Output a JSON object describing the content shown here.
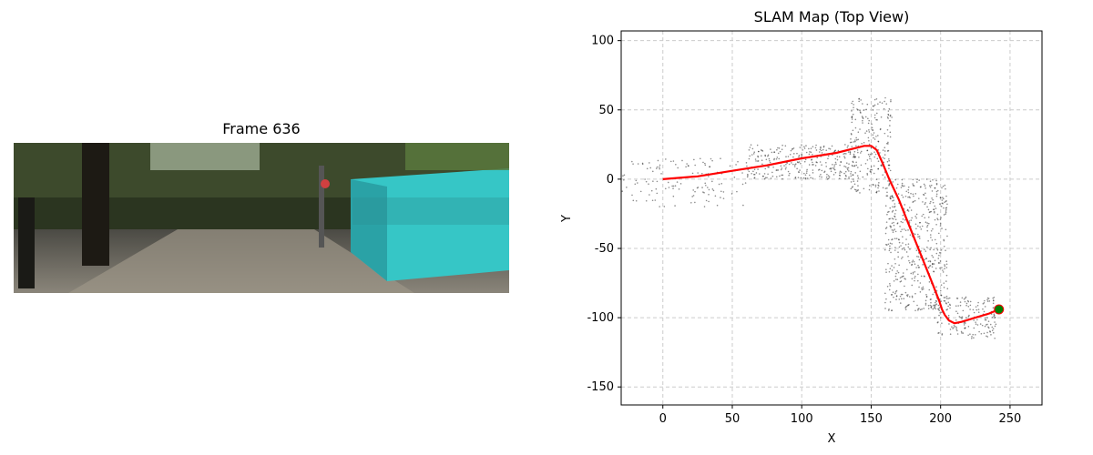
{
  "left_panel": {
    "frame_title": "Frame 636",
    "image_description_colors": {
      "sky": "#e9f3ea",
      "foliage": "#2f3a22",
      "container": "#38c8c8",
      "road": "#6e6a62"
    }
  },
  "chart_data": {
    "type": "scatter",
    "title": "SLAM Map (Top View)",
    "xlabel": "X",
    "ylabel": "Y",
    "xlim": [
      -30,
      273
    ],
    "ylim": [
      -163,
      107
    ],
    "xticks": [
      0,
      50,
      100,
      150,
      200,
      250
    ],
    "yticks": [
      -150,
      -100,
      -50,
      0,
      50,
      100
    ],
    "grid": true,
    "grid_style": "dashed",
    "series": [
      {
        "kind": "points",
        "color": "#000000",
        "description_only": true,
        "cluster_regions": [
          {
            "x": [
              -30,
              60
            ],
            "y": [
              -20,
              15
            ],
            "count": 500
          },
          {
            "x": [
              60,
              140
            ],
            "y": [
              0,
              25
            ],
            "count": 1200
          },
          {
            "x": [
              135,
              165
            ],
            "y": [
              -10,
              60
            ],
            "count": 900
          },
          {
            "x": [
              160,
              205
            ],
            "y": [
              -95,
              0
            ],
            "count": 2000
          },
          {
            "x": [
              195,
              240
            ],
            "y": [
              -115,
              -85
            ],
            "count": 700
          }
        ]
      },
      {
        "kind": "trajectory",
        "color": "#ff0000",
        "points": [
          [
            0,
            0
          ],
          [
            25,
            2
          ],
          [
            50,
            6
          ],
          [
            75,
            10
          ],
          [
            100,
            15
          ],
          [
            125,
            19
          ],
          [
            145,
            24
          ],
          [
            150,
            24
          ],
          [
            154,
            21
          ],
          [
            158,
            12
          ],
          [
            163,
            0
          ],
          [
            170,
            -15
          ],
          [
            178,
            -35
          ],
          [
            186,
            -55
          ],
          [
            194,
            -75
          ],
          [
            199,
            -88
          ],
          [
            201,
            -94
          ],
          [
            203,
            -98
          ],
          [
            206,
            -102
          ],
          [
            210,
            -104
          ],
          [
            215,
            -103
          ],
          [
            225,
            -100
          ],
          [
            235,
            -97
          ],
          [
            242,
            -94
          ]
        ]
      },
      {
        "kind": "current-position",
        "color": "#008000",
        "points": [
          [
            242,
            -94
          ]
        ]
      }
    ]
  }
}
